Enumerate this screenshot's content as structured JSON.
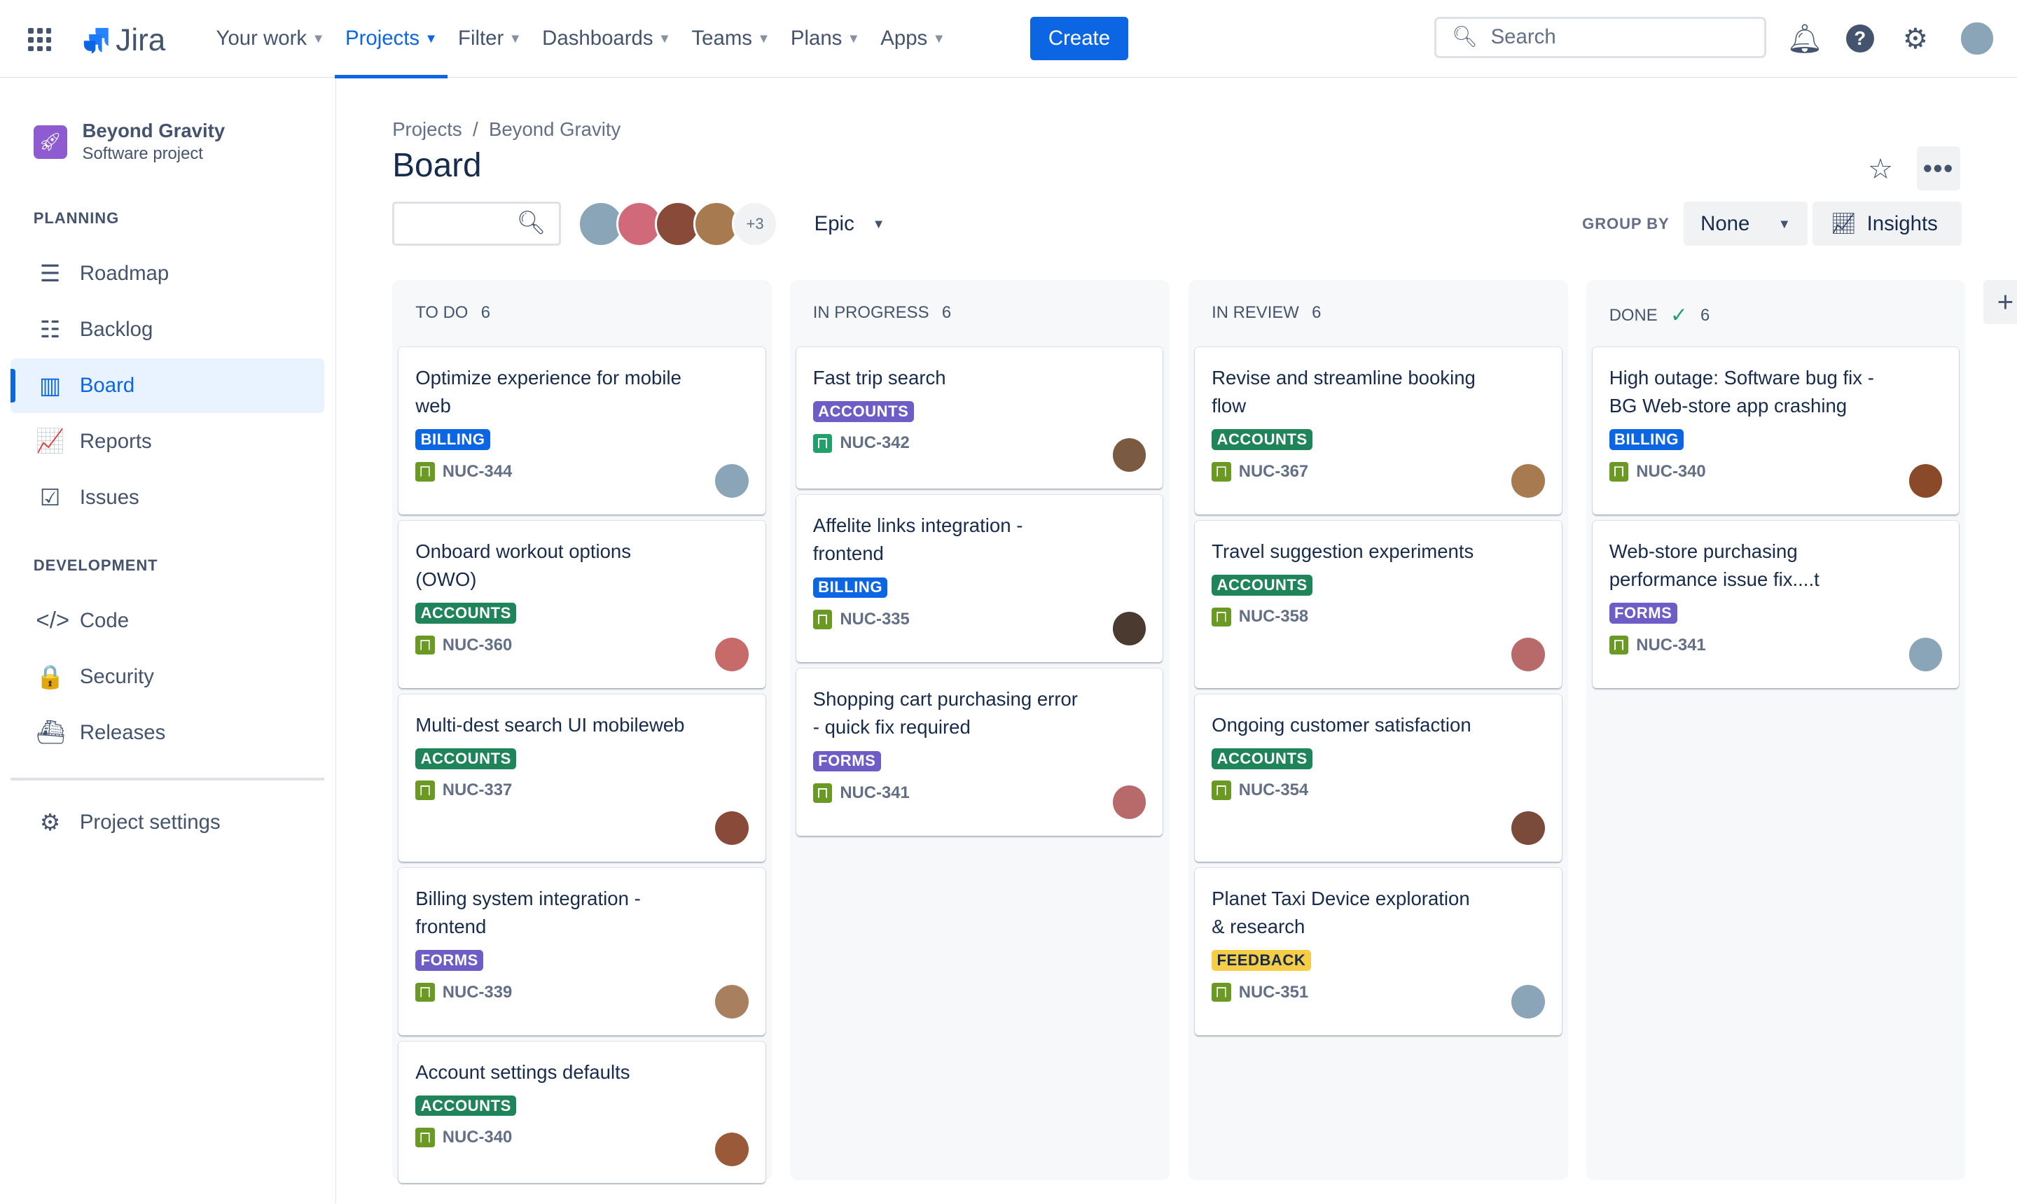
{
  "nav": {
    "items": [
      {
        "label": "Your work",
        "active": false
      },
      {
        "label": "Projects",
        "active": true
      },
      {
        "label": "Filter",
        "active": false
      },
      {
        "label": "Dashboards",
        "active": false
      },
      {
        "label": "Teams",
        "active": false
      },
      {
        "label": "Plans",
        "active": false
      },
      {
        "label": "Apps",
        "active": false
      }
    ],
    "logo": "Jira",
    "create": "Create",
    "search_placeholder": "Search"
  },
  "sidebar": {
    "project_name": "Beyond Gravity",
    "project_type": "Software project",
    "planning": "PLANNING",
    "development": "DEVELOPMENT",
    "planning_items": [
      {
        "label": "Roadmap",
        "icon": "roadmap-icon",
        "glyph": "☰"
      },
      {
        "label": "Backlog",
        "icon": "backlog-icon",
        "glyph": "☷"
      },
      {
        "label": "Board",
        "icon": "board-icon",
        "glyph": "▥",
        "active": true
      },
      {
        "label": "Reports",
        "icon": "reports-icon",
        "glyph": "📈"
      },
      {
        "label": "Issues",
        "icon": "issues-icon",
        "glyph": "☑"
      }
    ],
    "dev_items": [
      {
        "label": "Code",
        "icon": "code-icon",
        "glyph": "</>"
      },
      {
        "label": "Security",
        "icon": "lock-icon",
        "glyph": "🔒"
      },
      {
        "label": "Releases",
        "icon": "releases-icon",
        "glyph": "⛴"
      }
    ],
    "settings": "Project settings"
  },
  "header": {
    "breadcrumb": [
      "Projects",
      "Beyond Gravity"
    ],
    "title": "Board",
    "extra_avatars": "+3",
    "epic": "Epic",
    "group_by": "GROUP BY",
    "group_value": "None",
    "insights": "Insights"
  },
  "colors": {
    "BILLING": "#0C66E4",
    "ACCOUNTS": "#1F845A",
    "ACCOUNTS_PURPLE": "#6E5DC6",
    "FORMS": "#6E5DC6",
    "FEEDBACK": "#F5CD47"
  },
  "columns": [
    {
      "name": "TO DO",
      "count": "6",
      "done": false,
      "cards": [
        {
          "title": "Optimize experience for mobile web",
          "label": "BILLING",
          "key": "NUC-344",
          "avatar": "#8aa4b8"
        },
        {
          "title": "Onboard workout options (OWO)",
          "label": "ACCOUNTS",
          "key": "NUC-360",
          "avatar": "#c76a6a"
        },
        {
          "title": "Multi-dest search UI mobileweb",
          "label": "ACCOUNTS",
          "key": "NUC-337",
          "avatar": "#8a4a3a"
        },
        {
          "title": "Billing system integration - frontend",
          "label": "FORMS",
          "key": "NUC-339",
          "avatar": "#a88060"
        },
        {
          "title": "Account settings defaults",
          "label": "ACCOUNTS",
          "key": "NUC-340",
          "avatar": "#9a5a3a"
        }
      ]
    },
    {
      "name": "IN PROGRESS",
      "count": "6",
      "done": false,
      "cards": [
        {
          "title": "Fast trip search",
          "label": "ACCOUNTS",
          "label_color": "#6E5DC6",
          "key": "NUC-342",
          "avatar": "#7a5a40",
          "teal": true
        },
        {
          "title": "Affelite links integration - frontend",
          "label": "BILLING",
          "key": "NUC-335",
          "avatar": "#4a3a30"
        },
        {
          "title": "Shopping cart purchasing error - quick fix required",
          "label": "FORMS",
          "key": "NUC-341",
          "avatar": "#b86a6a"
        }
      ]
    },
    {
      "name": "IN REVIEW",
      "count": "6",
      "done": false,
      "cards": [
        {
          "title": "Revise and streamline booking flow",
          "label": "ACCOUNTS",
          "key": "NUC-367",
          "avatar": "#a87a50"
        },
        {
          "title": "Travel suggestion experiments",
          "label": "ACCOUNTS",
          "key": "NUC-358",
          "avatar": "#b86a6a"
        },
        {
          "title": "Ongoing customer satisfaction",
          "label": "ACCOUNTS",
          "key": "NUC-354",
          "avatar": "#7a4a3a"
        },
        {
          "title": "Planet Taxi Device exploration & research",
          "label": "FEEDBACK",
          "key": "NUC-351",
          "avatar": "#8aa4b8"
        }
      ]
    },
    {
      "name": "DONE",
      "count": "6",
      "done": true,
      "cards": [
        {
          "title": "High outage: Software bug fix - BG Web-store app crashing",
          "label": "BILLING",
          "key": "NUC-340",
          "avatar": "#8a4a2a"
        },
        {
          "title": "Web-store purchasing performance issue fix....t",
          "label": "FORMS",
          "key": "NUC-341",
          "avatar": "#8aa4b8"
        }
      ]
    }
  ]
}
